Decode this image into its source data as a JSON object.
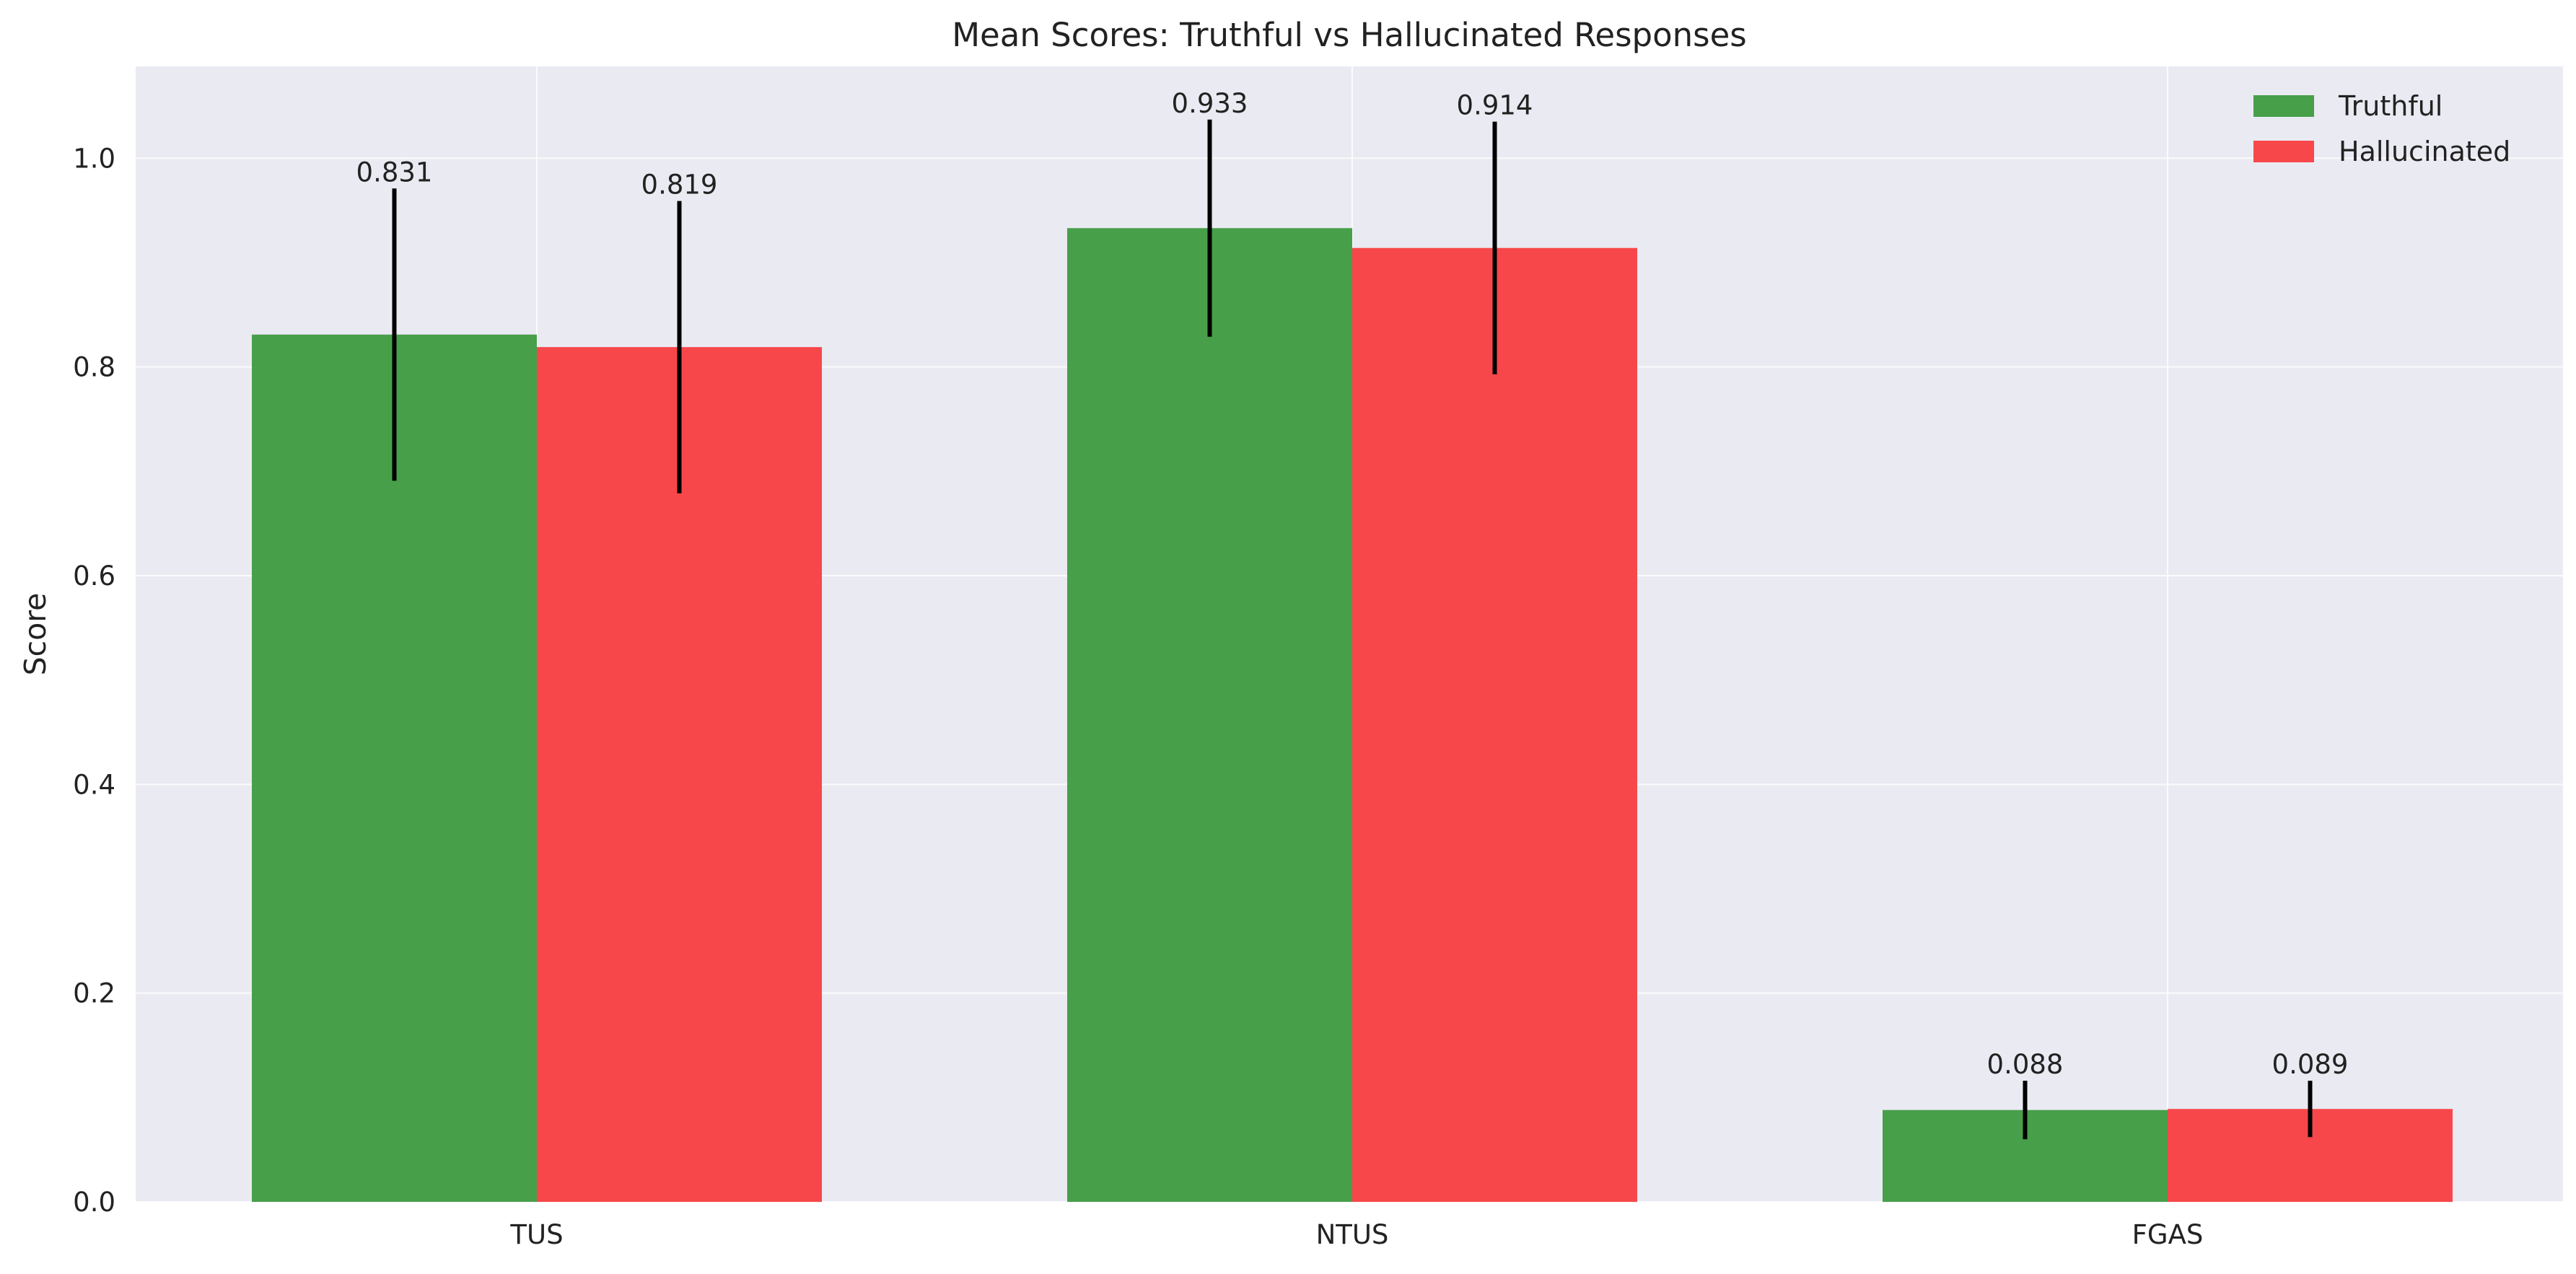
{
  "chart_data": {
    "type": "bar",
    "title": "Mean Scores: Truthful vs Hallucinated Responses",
    "xlabel": "",
    "ylabel": "Score",
    "categories": [
      "TUS",
      "NTUS",
      "FGAS"
    ],
    "series": [
      {
        "name": "Truthful",
        "color": "#479f4a",
        "values": [
          0.831,
          0.933,
          0.088
        ],
        "errors": [
          0.14,
          0.104,
          0.028
        ],
        "labels": [
          "0.831",
          "0.933",
          "0.088"
        ]
      },
      {
        "name": "Hallucinated",
        "color": "#f7474a",
        "values": [
          0.819,
          0.914,
          0.089
        ],
        "errors": [
          0.14,
          0.121,
          0.027
        ],
        "labels": [
          "0.819",
          "0.914",
          "0.089"
        ]
      }
    ],
    "ylim": [
      0,
      1.088
    ],
    "yticks": [
      "0.0",
      "0.2",
      "0.4",
      "0.6",
      "0.8",
      "1.0"
    ],
    "grid": true,
    "legend_position": "top-right",
    "background_color": "#eaeaf2",
    "gridline_color": "#ffffff",
    "errorbar_color": "#000000"
  }
}
